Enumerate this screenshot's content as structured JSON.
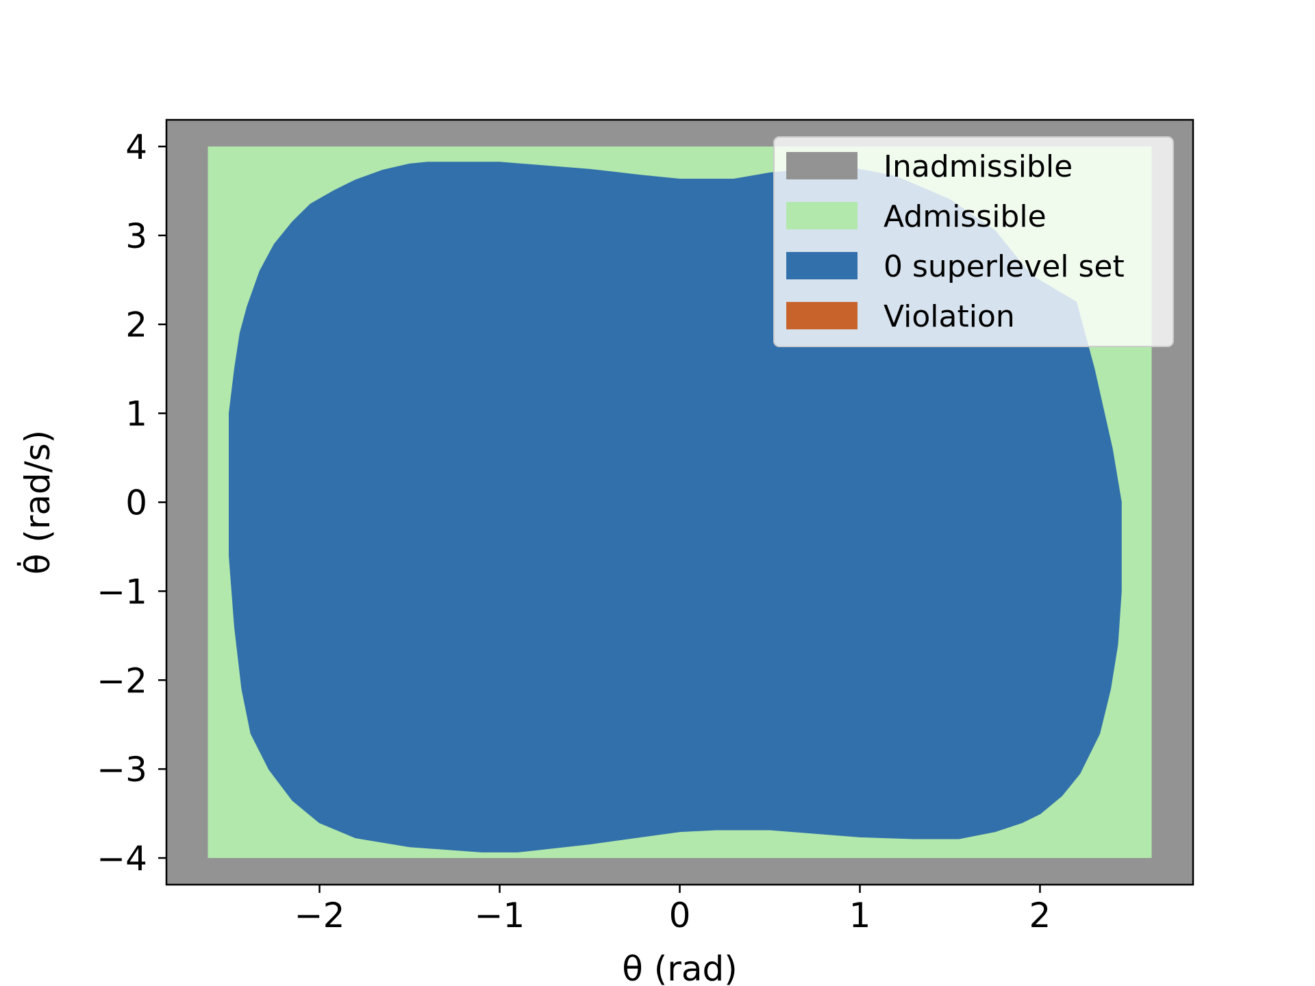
{
  "chart_data": {
    "type": "heatmap",
    "title": "",
    "xlabel": "θ (rad)",
    "ylabel": "θ̇ (rad/s)",
    "xlim": [
      -2.85,
      2.85
    ],
    "ylim": [
      -4.3,
      4.3
    ],
    "x_ticks": [
      -2,
      -1,
      0,
      1,
      2
    ],
    "y_ticks": [
      -4,
      -3,
      -2,
      -1,
      0,
      1,
      2,
      3,
      4
    ],
    "x_tick_labels": [
      "−2",
      "−1",
      "0",
      "1",
      "2"
    ],
    "y_tick_labels": [
      "−4",
      "−3",
      "−2",
      "−1",
      "0",
      "1",
      "2",
      "3",
      "4"
    ],
    "grid": false,
    "legend_position": "top-right",
    "regions": [
      {
        "name": "Inadmissible",
        "color": "#939393",
        "extent": {
          "x": [
            -2.85,
            2.85
          ],
          "y": [
            -4.3,
            4.3
          ]
        }
      },
      {
        "name": "Admissible",
        "color": "#b2e8ab",
        "extent": {
          "x": [
            -2.62,
            2.62
          ],
          "y": [
            -4.0,
            4.0
          ]
        }
      },
      {
        "name": "0 superlevel set",
        "color": "#3270ab",
        "boundary": [
          [
            -2.5,
            0.0
          ],
          [
            -2.5,
            1.0
          ],
          [
            -2.47,
            1.5
          ],
          [
            -2.44,
            1.9
          ],
          [
            -2.4,
            2.2
          ],
          [
            -2.33,
            2.6
          ],
          [
            -2.25,
            2.9
          ],
          [
            -2.15,
            3.15
          ],
          [
            -2.05,
            3.35
          ],
          [
            -1.92,
            3.5
          ],
          [
            -1.8,
            3.62
          ],
          [
            -1.65,
            3.73
          ],
          [
            -1.5,
            3.8
          ],
          [
            -1.4,
            3.82
          ],
          [
            -1.0,
            3.82
          ],
          [
            -0.5,
            3.74
          ],
          [
            -0.2,
            3.67
          ],
          [
            0.0,
            3.63
          ],
          [
            0.3,
            3.63
          ],
          [
            0.5,
            3.7
          ],
          [
            0.9,
            3.78
          ],
          [
            1.2,
            3.66
          ],
          [
            1.5,
            3.4
          ],
          [
            1.75,
            3.05
          ],
          [
            1.95,
            2.55
          ],
          [
            2.2,
            2.25
          ],
          [
            2.3,
            1.5
          ],
          [
            2.35,
            1.05
          ],
          [
            2.4,
            0.6
          ],
          [
            2.45,
            0.0
          ],
          [
            2.45,
            -1.0
          ],
          [
            2.43,
            -1.6
          ],
          [
            2.39,
            -2.1
          ],
          [
            2.33,
            -2.6
          ],
          [
            2.22,
            -3.05
          ],
          [
            2.12,
            -3.3
          ],
          [
            2.0,
            -3.5
          ],
          [
            1.9,
            -3.6
          ],
          [
            1.75,
            -3.7
          ],
          [
            1.65,
            -3.74
          ],
          [
            1.55,
            -3.78
          ],
          [
            1.3,
            -3.78
          ],
          [
            1.0,
            -3.76
          ],
          [
            0.5,
            -3.68
          ],
          [
            0.2,
            -3.68
          ],
          [
            0.0,
            -3.7
          ],
          [
            -0.5,
            -3.84
          ],
          [
            -0.9,
            -3.93
          ],
          [
            -1.1,
            -3.93
          ],
          [
            -1.5,
            -3.87
          ],
          [
            -1.8,
            -3.77
          ],
          [
            -2.0,
            -3.6
          ],
          [
            -2.15,
            -3.35
          ],
          [
            -2.28,
            -3.0
          ],
          [
            -2.38,
            -2.6
          ],
          [
            -2.43,
            -2.1
          ],
          [
            -2.47,
            -1.4
          ],
          [
            -2.5,
            -0.6
          ]
        ]
      },
      {
        "name": "Violation",
        "color": "#c8632b"
      }
    ],
    "legend": [
      {
        "label": "Inadmissible",
        "color": "#939393"
      },
      {
        "label": "Admissible",
        "color": "#b2e8ab"
      },
      {
        "label": "0 superlevel set",
        "color": "#3270ab"
      },
      {
        "label": "Violation",
        "color": "#c8632b"
      }
    ]
  }
}
